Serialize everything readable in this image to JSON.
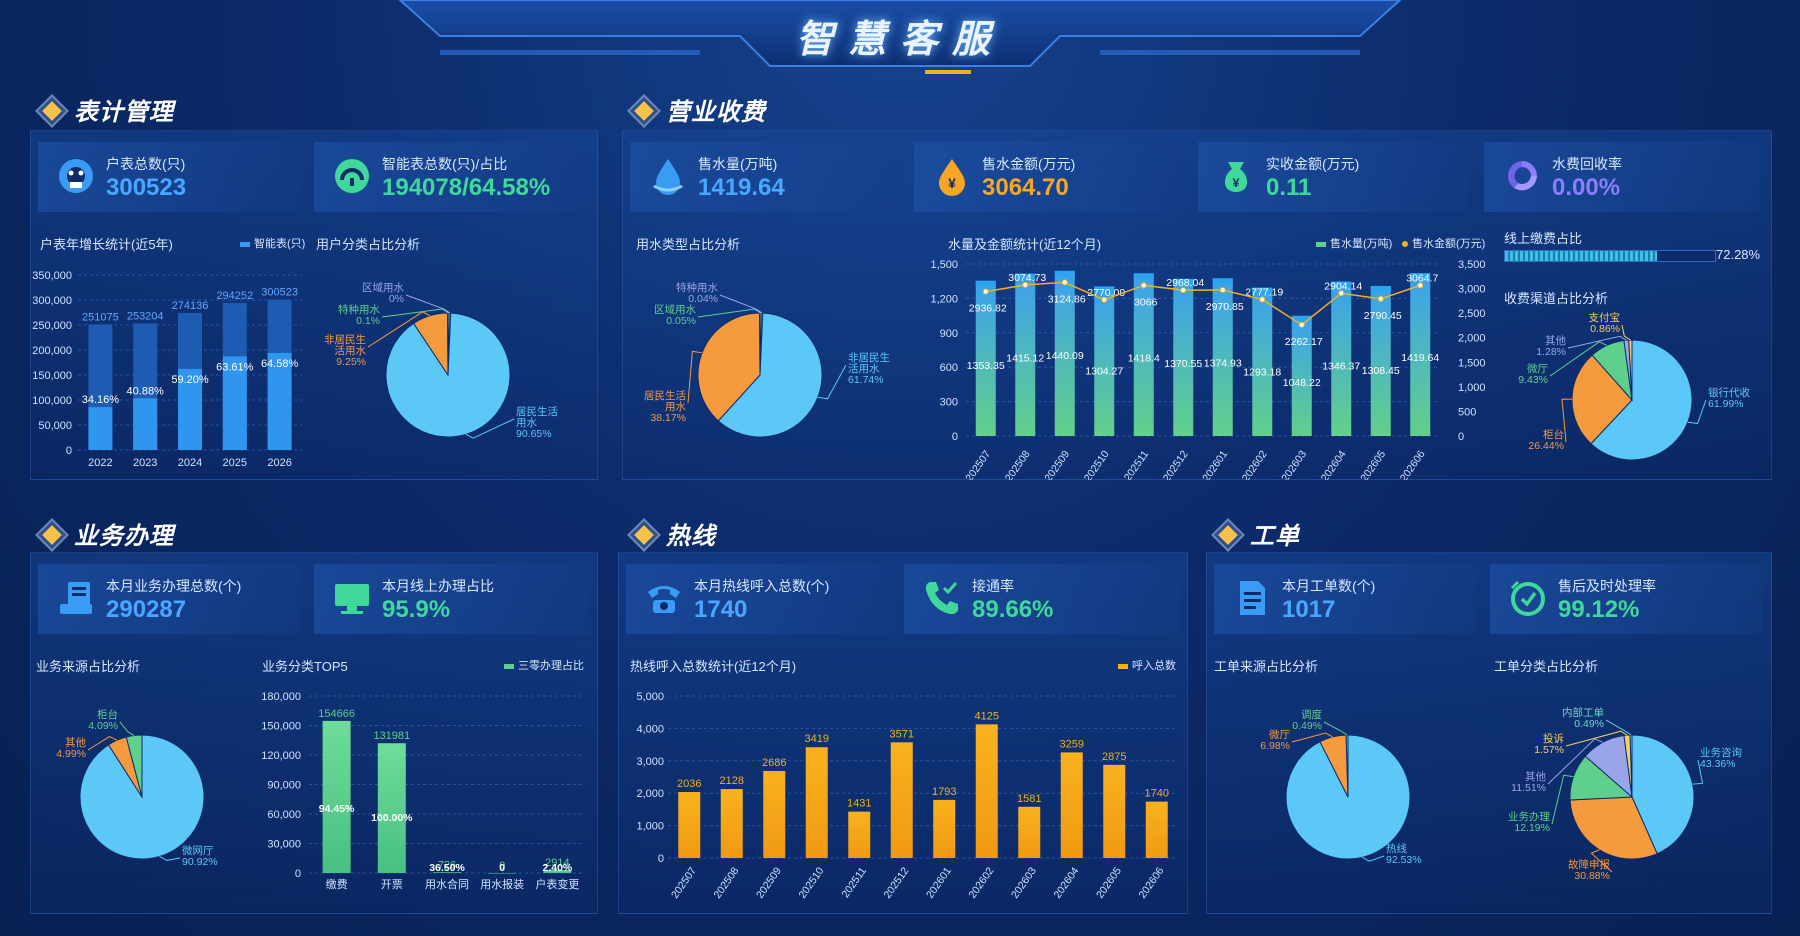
{
  "app_title": "智慧客服",
  "colors": {
    "blue": "#3a9bf5",
    "green": "#5fcf8e",
    "orange": "#f59a3d",
    "sky": "#5cc8f7",
    "gold": "#f2b01e",
    "purple": "#9aa4e8",
    "yellow": "#f9cf60",
    "teal": "#6fd6c6"
  },
  "meter": {
    "title": "表计管理",
    "kpis": [
      {
        "label": "户表总数(只)",
        "value": "300523",
        "icon": "meter-icon",
        "color": "#4aa7ff"
      },
      {
        "label": "智能表总数(只)/占比",
        "value": "194078/64.58%",
        "icon": "smart-meter-icon",
        "color": "#3fd89a"
      }
    ]
  },
  "billing": {
    "title": "营业收费",
    "kpis": [
      {
        "label": "售水量(万吨)",
        "value": "1419.64",
        "icon": "water-drop-icon",
        "color": "#4aa7ff"
      },
      {
        "label": "售水金额(万元)",
        "value": "3064.70",
        "icon": "yuan-drop-icon",
        "color": "#f5a623"
      },
      {
        "label": "实收金额(万元)",
        "value": "0.11",
        "icon": "money-bag-icon",
        "color": "#3fd89a"
      },
      {
        "label": "水费回收率",
        "value": "0.00%",
        "icon": "recycle-icon",
        "color": "#8a7dff"
      }
    ],
    "online_pay_label": "线上缴费占比",
    "online_pay_value": "72.28%",
    "online_pay_fraction": 0.7228
  },
  "business": {
    "title": "业务办理",
    "kpis": [
      {
        "label": "本月业务办理总数(个)",
        "value": "290287",
        "icon": "form-icon",
        "color": "#4aa7ff"
      },
      {
        "label": "本月线上办理占比",
        "value": "95.9%",
        "icon": "monitor-icon",
        "color": "#3fd89a"
      }
    ]
  },
  "hotline": {
    "title": "热线",
    "kpis": [
      {
        "label": "本月热线呼入总数(个)",
        "value": "1740",
        "icon": "telephone-icon",
        "color": "#4aa7ff"
      },
      {
        "label": "接通率",
        "value": "89.66%",
        "icon": "phone-check-icon",
        "color": "#3fd89a"
      }
    ]
  },
  "workorder": {
    "title": "工单",
    "kpis": [
      {
        "label": "本月工单数(个)",
        "value": "1017",
        "icon": "document-icon",
        "color": "#4aa7ff"
      },
      {
        "label": "售后及时处理率",
        "value": "99.12%",
        "icon": "clock-check-icon",
        "color": "#3fd89a"
      }
    ]
  },
  "chart_data": [
    {
      "id": "meter_growth",
      "type": "bar",
      "title": "户表年增长统计(近5年)",
      "legend": [
        "智能表(只)"
      ],
      "categories": [
        "2022",
        "2023",
        "2024",
        "2025",
        "2026"
      ],
      "series": [
        {
          "values": [
            251075,
            253204,
            274136,
            294252,
            300523
          ]
        },
        {
          "name": "智能表(只)",
          "values": [
            85800,
            103300,
            162200,
            187200,
            194078
          ]
        }
      ],
      "data_labels_total": [
        "251075",
        "253204",
        "274136",
        "294252",
        "300523"
      ],
      "data_labels_pct": [
        "34.16%",
        "40.88%",
        "59.20%",
        "63.61%",
        "64.58%"
      ],
      "yticks": [
        "350,000",
        "300,000",
        "250,000",
        "200,000",
        "150,000",
        "100,000",
        "50,000",
        "0"
      ],
      "ylim": [
        0,
        350000
      ]
    },
    {
      "id": "user_type",
      "type": "pie",
      "title": "用户分类占比分析",
      "slices": [
        {
          "label": "居民生活用水",
          "pct": "90.65%",
          "value": 90.65
        },
        {
          "label": "非居民生活用水",
          "pct": "9.25%",
          "value": 9.25
        },
        {
          "label": "特种用水",
          "pct": "0.1%",
          "value": 0.1
        },
        {
          "label": "区域用水",
          "pct": "0%",
          "value": 0
        }
      ]
    },
    {
      "id": "water_use_type",
      "type": "pie",
      "title": "用水类型占比分析",
      "slices": [
        {
          "label": "非居民生活用水",
          "pct": "61.74%",
          "value": 61.74
        },
        {
          "label": "居民生活用水",
          "pct": "38.17%",
          "value": 38.17
        },
        {
          "label": "区域用水",
          "pct": "0.05%",
          "value": 0.05
        },
        {
          "label": "特种用水",
          "pct": "0.04%",
          "value": 0.04
        }
      ]
    },
    {
      "id": "water_amount",
      "type": "bar",
      "title": "水量及金额统计(近12个月)",
      "legend": [
        "售水量(万吨)",
        "售水金额(万元)"
      ],
      "categories": [
        "202507",
        "202508",
        "202509",
        "202510",
        "202511",
        "202512",
        "202601",
        "202602",
        "202603",
        "202604",
        "202605",
        "202606"
      ],
      "series": [
        {
          "name": "售水量(万吨)",
          "values": [
            1353.35,
            1415.12,
            1440.09,
            1304.27,
            1418.4,
            1370.55,
            1374.93,
            1293.18,
            1048.22,
            1346.37,
            1308.45,
            1419.64
          ]
        },
        {
          "name": "售水金额(万元)",
          "type": "line",
          "values": [
            2936.82,
            3074.73,
            3124.86,
            2770.09,
            3066,
            2968.04,
            2970.85,
            2777.19,
            2262.17,
            2904.14,
            2790.45,
            3064.7
          ]
        }
      ],
      "bar_labels": [
        "1353.35",
        "1415.12",
        "1440.09",
        "1304.27",
        "1418.4",
        "1370.55",
        "1374.93",
        "1293.18",
        "1048.22",
        "1346.37",
        "1308.45",
        "1419.64"
      ],
      "line_labels": [
        "2936.82",
        "3074.73",
        "3124.86",
        "2770.09",
        "3066",
        "2968.04",
        "2970.85",
        "2777.19",
        "2262.17",
        "2904.14",
        "2790.45",
        "3064.7"
      ],
      "yticks_left": [
        "1,500",
        "1,200",
        "900",
        "600",
        "300",
        "0"
      ],
      "yticks_right": [
        "3,500",
        "3,000",
        "2,500",
        "2,000",
        "1,500",
        "1,000",
        "500",
        "0"
      ],
      "ylim_left": [
        0,
        1500
      ],
      "ylim_right": [
        0,
        3500
      ]
    },
    {
      "id": "pay_channel",
      "type": "pie",
      "title": "收费渠道占比分析",
      "slices": [
        {
          "label": "银行代收",
          "pct": "61.99%",
          "value": 61.99
        },
        {
          "label": "柜台",
          "pct": "26.44%",
          "value": 26.44
        },
        {
          "label": "微厅",
          "pct": "9.43%",
          "value": 9.43
        },
        {
          "label": "其他",
          "pct": "1.28%",
          "value": 1.28
        },
        {
          "label": "支付宝",
          "pct": "0.86%",
          "value": 0.86
        }
      ]
    },
    {
      "id": "business_source",
      "type": "pie",
      "title": "业务来源占比分析",
      "slices": [
        {
          "label": "微网厅",
          "pct": "90.92%",
          "value": 90.92
        },
        {
          "label": "其他",
          "pct": "4.99%",
          "value": 4.99
        },
        {
          "label": "柜台",
          "pct": "4.09%",
          "value": 4.09
        }
      ]
    },
    {
      "id": "business_top5",
      "type": "bar",
      "title": "业务分类TOP5",
      "legend": [
        "三零办理占比"
      ],
      "categories": [
        "缴费",
        "开票",
        "用水合同",
        "用水报装",
        "户表变更"
      ],
      "values": [
        154666,
        131981,
        726,
        0,
        2914
      ],
      "value_labels": [
        "154666",
        "131981",
        "726",
        "0",
        "2914"
      ],
      "pct_labels": [
        "94.45%",
        "100.00%",
        "36.50%",
        "0",
        "2.40%"
      ],
      "yticks": [
        "180,000",
        "150,000",
        "120,000",
        "90,000",
        "60,000",
        "30,000",
        "0"
      ],
      "ylim": [
        0,
        180000
      ]
    },
    {
      "id": "hotline_calls",
      "type": "bar",
      "title": "热线呼入总数统计(近12个月)",
      "legend": [
        "呼入总数"
      ],
      "categories": [
        "202507",
        "202508",
        "202509",
        "202510",
        "202511",
        "202512",
        "202601",
        "202602",
        "202603",
        "202604",
        "202605",
        "202606"
      ],
      "values": [
        2036,
        2128,
        2686,
        3419,
        1431,
        3571,
        1793,
        4125,
        1581,
        3259,
        2875,
        1740
      ],
      "value_labels": [
        "2036",
        "2128",
        "2686",
        "3419",
        "1431",
        "3571",
        "1793",
        "4125",
        "1581",
        "3259",
        "2875",
        "1740"
      ],
      "yticks": [
        "5,000",
        "4,000",
        "3,000",
        "2,000",
        "1,000",
        "0"
      ],
      "ylim": [
        0,
        5000
      ]
    },
    {
      "id": "workorder_source",
      "type": "pie",
      "title": "工单来源占比分析",
      "slices": [
        {
          "label": "热线",
          "pct": "92.53%",
          "value": 92.53
        },
        {
          "label": "微厅",
          "pct": "6.98%",
          "value": 6.98
        },
        {
          "label": "调度",
          "pct": "0.49%",
          "value": 0.49
        }
      ]
    },
    {
      "id": "workorder_type",
      "type": "pie",
      "title": "工单分类占比分析",
      "slices": [
        {
          "label": "业务咨询",
          "pct": "43.36%",
          "value": 43.36
        },
        {
          "label": "故障申报",
          "pct": "30.88%",
          "value": 30.88
        },
        {
          "label": "业务办理",
          "pct": "12.19%",
          "value": 12.19
        },
        {
          "label": "其他",
          "pct": "11.51%",
          "value": 11.51
        },
        {
          "label": "投诉",
          "pct": "1.57%",
          "value": 1.57
        },
        {
          "label": "内部工单",
          "pct": "0.49%",
          "value": 0.49
        }
      ]
    }
  ]
}
